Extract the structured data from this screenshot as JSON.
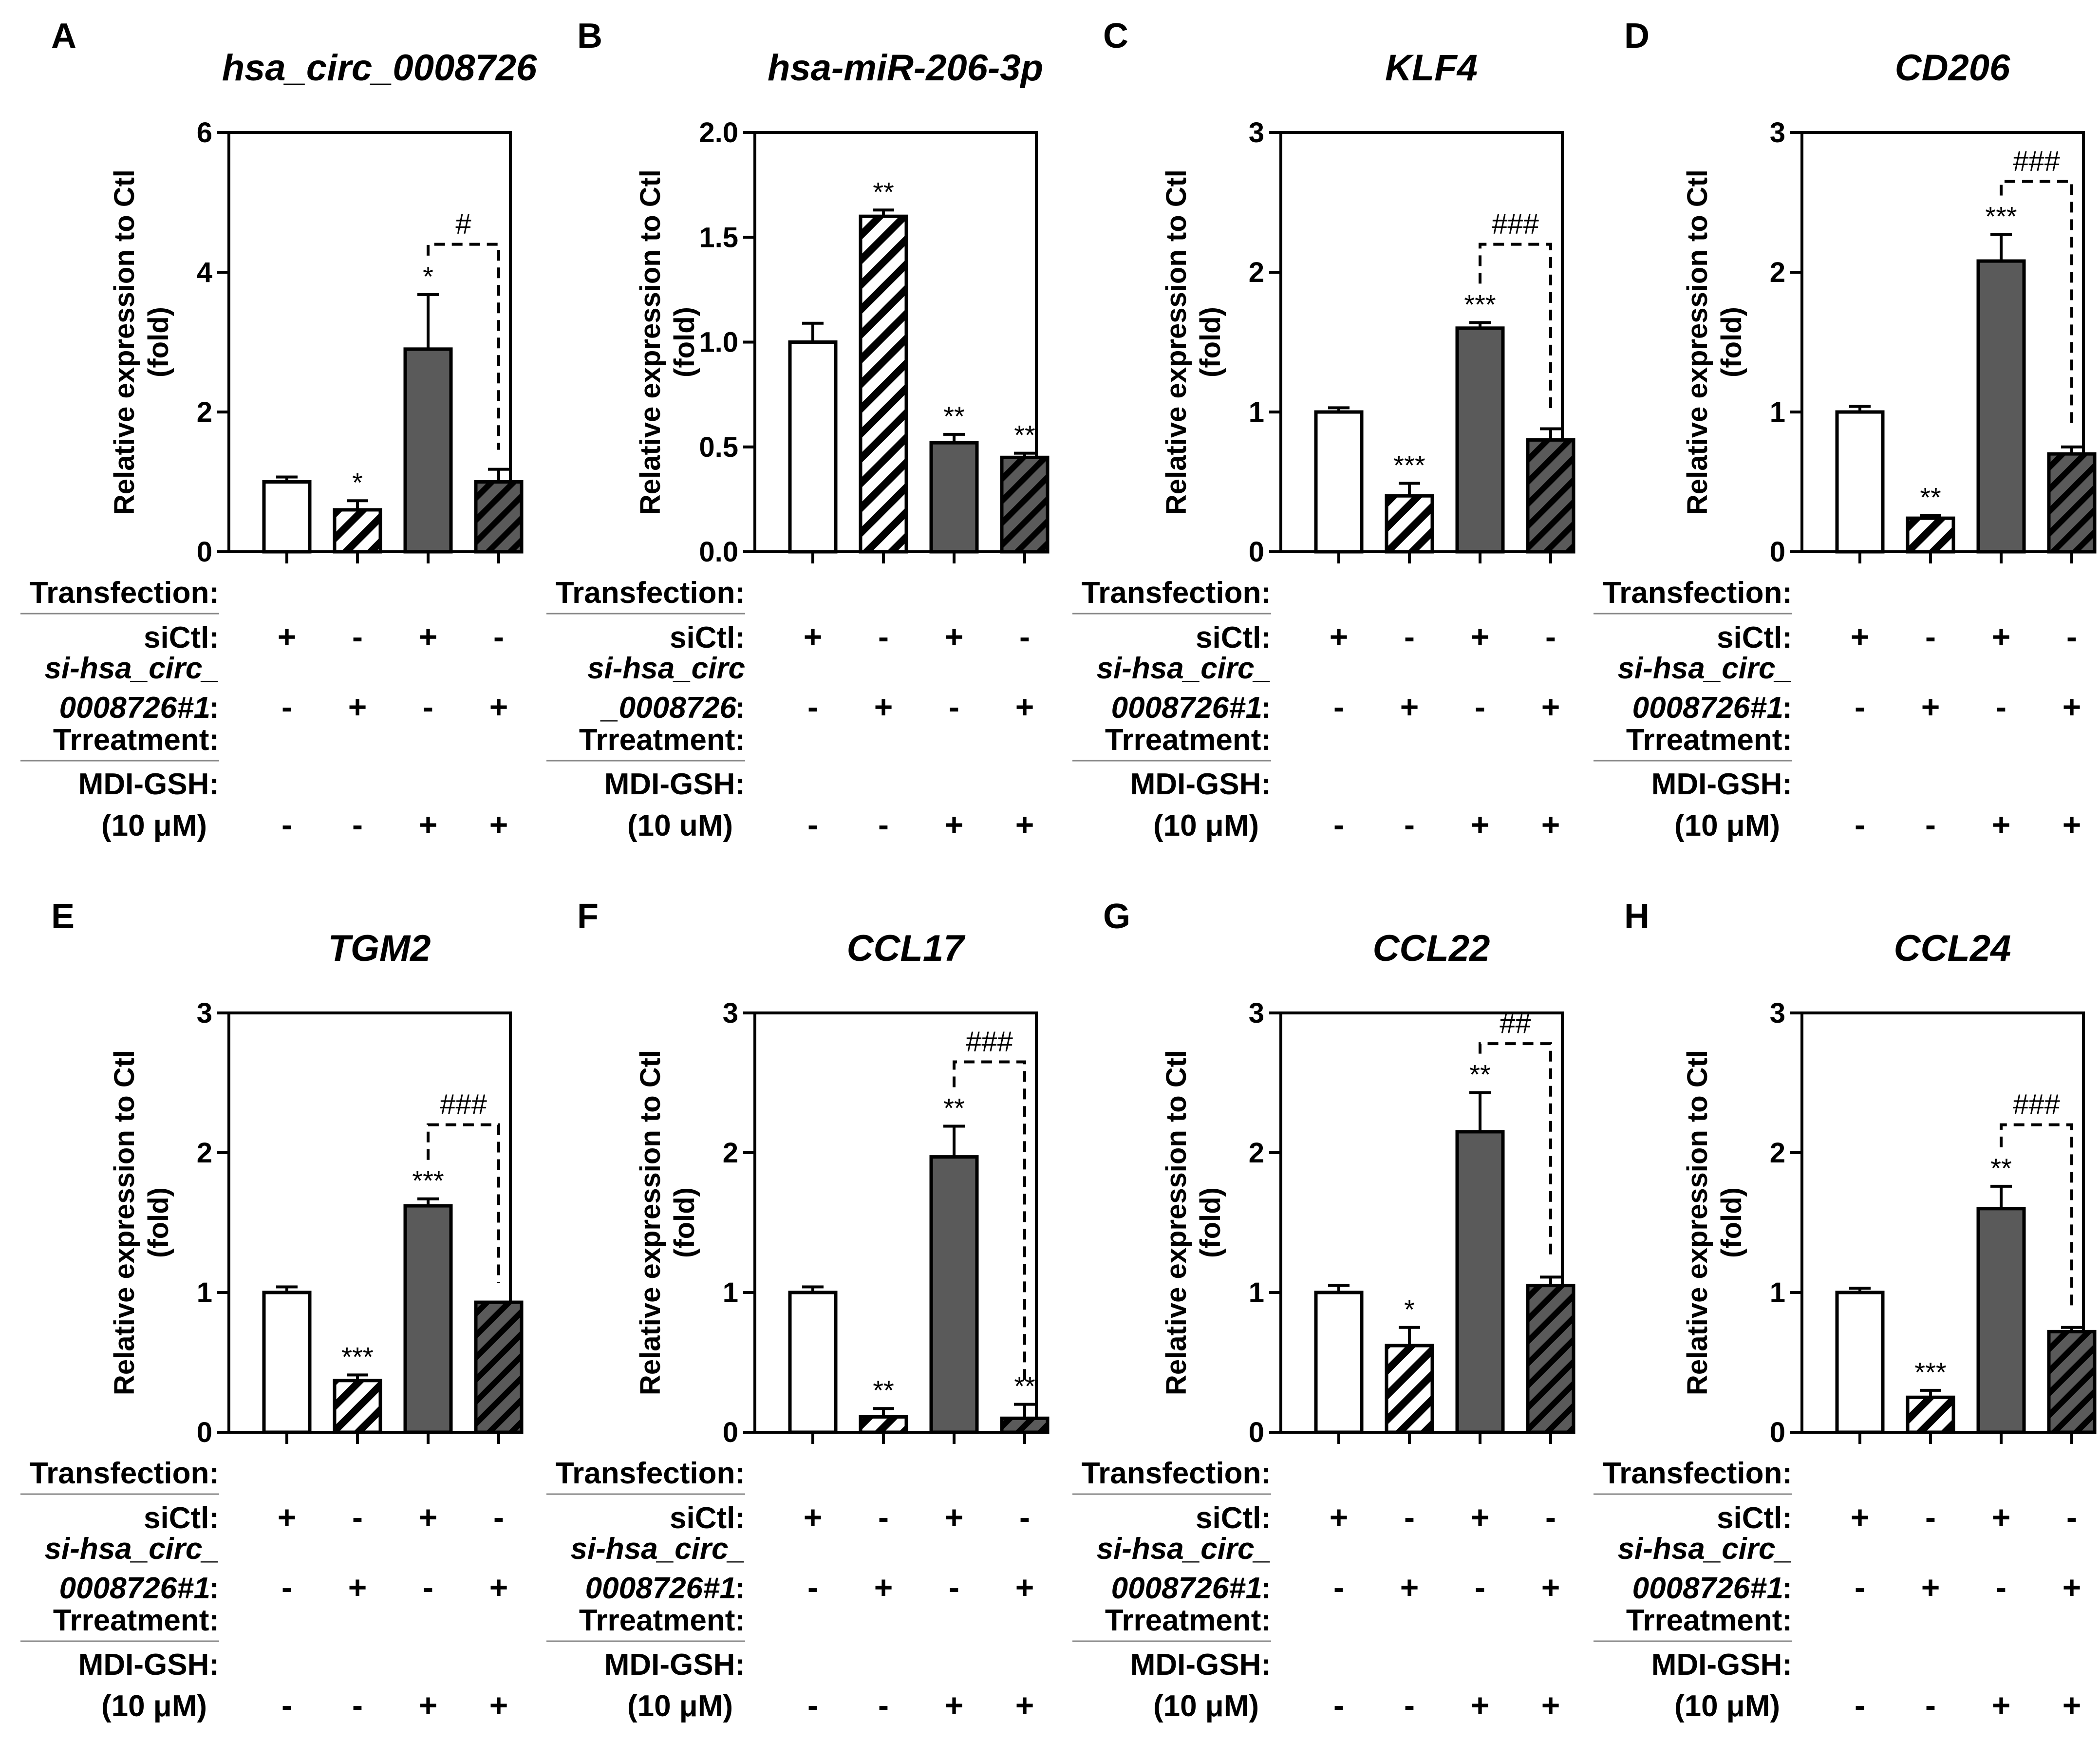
{
  "chart_data": [
    {
      "type": "bar",
      "panel_letter": "A",
      "title": "hsa_circ_0008726",
      "ylabel_line1": "Relative expression to Ctl",
      "ylabel_line2": "(fold)",
      "ylim": [
        0,
        6
      ],
      "yticks": [
        0,
        2,
        4,
        6
      ],
      "ytick_labels": [
        "0",
        "2",
        "4",
        "6"
      ],
      "values": [
        1.0,
        0.6,
        2.9,
        1.0
      ],
      "errors": [
        0.07,
        0.13,
        0.78,
        0.18
      ],
      "fills": [
        "open",
        "hatch-light",
        "solid",
        "hatch-dark"
      ],
      "bar_labels": [
        "",
        "*",
        "*",
        ""
      ],
      "comparison": {
        "from": 2,
        "to": 3,
        "label": "#",
        "y": 4.4
      },
      "table": {
        "transfection": "Transfection:",
        "si_control": "siCtl:",
        "sirna_line1": "si-hsa_circ_",
        "sirna_line2": "0008726#1",
        "sirna_colon": ":",
        "treatment": "Trreatment:",
        "drug": "MDI-GSH:",
        "dose": "(10 μM)",
        "rows": [
          [
            "+",
            "-",
            "+",
            "-"
          ],
          [
            "-",
            "+",
            "-",
            "+"
          ],
          [
            "-",
            "-",
            "+",
            "+"
          ]
        ]
      }
    },
    {
      "type": "bar",
      "panel_letter": "B",
      "title": "hsa-miR-206-3p",
      "ylabel_line1": "Relative expression to Ctl",
      "ylabel_line2": "(fold)",
      "ylim": [
        0,
        2
      ],
      "yticks": [
        0,
        0.5,
        1,
        1.5,
        2
      ],
      "ytick_labels": [
        "0.0",
        "0.5",
        "1.0",
        "1.5",
        "2.0"
      ],
      "values": [
        1.0,
        1.6,
        0.52,
        0.45
      ],
      "errors": [
        0.09,
        0.03,
        0.04,
        0.02
      ],
      "fills": [
        "open",
        "hatch-light",
        "solid",
        "hatch-dark"
      ],
      "bar_labels": [
        "",
        "**",
        "**",
        "**"
      ],
      "comparison": null,
      "table": {
        "transfection": "Transfection:",
        "si_control": "siCtl:",
        "sirna_line1": "si-hsa_circ",
        "sirna_line2": "_0008726",
        "sirna_colon": ":",
        "treatment": "Trreatment:",
        "drug": "MDI-GSH:",
        "dose": "(10 uM)",
        "rows": [
          [
            "+",
            "-",
            "+",
            "-"
          ],
          [
            "-",
            "+",
            "-",
            "+"
          ],
          [
            "-",
            "-",
            "+",
            "+"
          ]
        ]
      }
    },
    {
      "type": "bar",
      "panel_letter": "C",
      "title": "KLF4",
      "ylabel_line1": "Relative expression to Ctl",
      "ylabel_line2": "(fold)",
      "ylim": [
        0,
        3
      ],
      "yticks": [
        0,
        1,
        2,
        3
      ],
      "ytick_labels": [
        "0",
        "1",
        "2",
        "3"
      ],
      "values": [
        1.0,
        0.4,
        1.6,
        0.8
      ],
      "errors": [
        0.03,
        0.09,
        0.04,
        0.08
      ],
      "fills": [
        "open",
        "hatch-light",
        "solid",
        "hatch-dark"
      ],
      "bar_labels": [
        "",
        "***",
        "***",
        ""
      ],
      "comparison": {
        "from": 2,
        "to": 3,
        "label": "###",
        "y": 2.2
      },
      "table": {
        "transfection": "Transfection:",
        "si_control": "siCtl:",
        "sirna_line1": "si-hsa_circ_",
        "sirna_line2": "0008726#1",
        "sirna_colon": ":",
        "treatment": "Trreatment:",
        "drug": "MDI-GSH:",
        "dose": "(10 μM)",
        "rows": [
          [
            "+",
            "-",
            "+",
            "-"
          ],
          [
            "-",
            "+",
            "-",
            "+"
          ],
          [
            "-",
            "-",
            "+",
            "+"
          ]
        ]
      }
    },
    {
      "type": "bar",
      "panel_letter": "D",
      "title": "CD206",
      "ylabel_line1": "Relative expression to Ctl",
      "ylabel_line2": "(fold)",
      "ylim": [
        0,
        3
      ],
      "yticks": [
        0,
        1,
        2,
        3
      ],
      "ytick_labels": [
        "0",
        "1",
        "2",
        "3"
      ],
      "values": [
        1.0,
        0.24,
        2.08,
        0.7
      ],
      "errors": [
        0.04,
        0.02,
        0.19,
        0.05
      ],
      "fills": [
        "open",
        "hatch-light",
        "solid",
        "hatch-dark"
      ],
      "bar_labels": [
        "",
        "**",
        "***",
        ""
      ],
      "comparison": {
        "from": 2,
        "to": 3,
        "label": "###",
        "y": 2.65
      },
      "table": {
        "transfection": "Transfection:",
        "si_control": "siCtl:",
        "sirna_line1": "si-hsa_circ_",
        "sirna_line2": "0008726#1",
        "sirna_colon": ":",
        "treatment": "Trreatment:",
        "drug": "MDI-GSH:",
        "dose": "(10 μM)",
        "rows": [
          [
            "+",
            "-",
            "+",
            "-"
          ],
          [
            "-",
            "+",
            "-",
            "+"
          ],
          [
            "-",
            "-",
            "+",
            "+"
          ]
        ]
      }
    },
    {
      "type": "bar",
      "panel_letter": "E",
      "title": "TGM2",
      "ylabel_line1": "Relative expression to Ctl",
      "ylabel_line2": "(fold)",
      "ylim": [
        0,
        3
      ],
      "yticks": [
        0,
        1,
        2,
        3
      ],
      "ytick_labels": [
        "0",
        "1",
        "2",
        "3"
      ],
      "values": [
        1.0,
        0.37,
        1.62,
        0.93
      ],
      "errors": [
        0.04,
        0.04,
        0.05,
        0.0
      ],
      "fills": [
        "open",
        "hatch-light",
        "solid",
        "hatch-dark"
      ],
      "bar_labels": [
        "",
        "***",
        "***",
        ""
      ],
      "comparison": {
        "from": 2,
        "to": 3,
        "label": "###",
        "y": 2.2
      },
      "table": {
        "transfection": "Transfection:",
        "si_control": "siCtl:",
        "sirna_line1": "si-hsa_circ_",
        "sirna_line2": "0008726#1",
        "sirna_colon": ":",
        "treatment": "Trreatment:",
        "drug": "MDI-GSH:",
        "dose": "(10 μM)",
        "rows": [
          [
            "+",
            "-",
            "+",
            "-"
          ],
          [
            "-",
            "+",
            "-",
            "+"
          ],
          [
            "-",
            "-",
            "+",
            "+"
          ]
        ]
      }
    },
    {
      "type": "bar",
      "panel_letter": "F",
      "title": "CCL17",
      "ylabel_line1": "Relative expression to Ctl",
      "ylabel_line2": "(fold)",
      "ylim": [
        0,
        3
      ],
      "yticks": [
        0,
        1,
        2,
        3
      ],
      "ytick_labels": [
        "0",
        "1",
        "2",
        "3"
      ],
      "values": [
        1.0,
        0.11,
        1.97,
        0.1
      ],
      "errors": [
        0.04,
        0.06,
        0.22,
        0.1
      ],
      "fills": [
        "open",
        "hatch-light",
        "solid",
        "hatch-dark"
      ],
      "bar_labels": [
        "",
        "**",
        "**",
        "**"
      ],
      "comparison": {
        "from": 2,
        "to": 3,
        "label": "###",
        "y": 2.65
      },
      "table": {
        "transfection": "Transfection:",
        "si_control": "siCtl:",
        "sirna_line1": "si-hsa_circ_",
        "sirna_line2": "0008726#1",
        "sirna_colon": ":",
        "treatment": "Trreatment:",
        "drug": "MDI-GSH:",
        "dose": "(10 μM)",
        "rows": [
          [
            "+",
            "-",
            "+",
            "-"
          ],
          [
            "-",
            "+",
            "-",
            "+"
          ],
          [
            "-",
            "-",
            "+",
            "+"
          ]
        ]
      }
    },
    {
      "type": "bar",
      "panel_letter": "G",
      "title": "CCL22",
      "ylabel_line1": "Relative expression to Ctl",
      "ylabel_line2": "(fold)",
      "ylim": [
        0,
        3
      ],
      "yticks": [
        0,
        1,
        2,
        3
      ],
      "ytick_labels": [
        "0",
        "1",
        "2",
        "3"
      ],
      "values": [
        1.0,
        0.62,
        2.15,
        1.05
      ],
      "errors": [
        0.05,
        0.13,
        0.28,
        0.06
      ],
      "fills": [
        "open",
        "hatch-light",
        "solid",
        "hatch-dark"
      ],
      "bar_labels": [
        "",
        "*",
        "**",
        ""
      ],
      "comparison": {
        "from": 2,
        "to": 3,
        "label": "##",
        "y": 2.78
      },
      "table": {
        "transfection": "Transfection:",
        "si_control": "siCtl:",
        "sirna_line1": "si-hsa_circ_",
        "sirna_line2": "0008726#1",
        "sirna_colon": ":",
        "treatment": "Trreatment:",
        "drug": "MDI-GSH:",
        "dose": "(10 μM)",
        "rows": [
          [
            "+",
            "-",
            "+",
            "-"
          ],
          [
            "-",
            "+",
            "-",
            "+"
          ],
          [
            "-",
            "-",
            "+",
            "+"
          ]
        ]
      }
    },
    {
      "type": "bar",
      "panel_letter": "H",
      "title": "CCL24",
      "ylabel_line1": "Relative expression to Ctl",
      "ylabel_line2": "(fold)",
      "ylim": [
        0,
        3
      ],
      "yticks": [
        0,
        1,
        2,
        3
      ],
      "ytick_labels": [
        "0",
        "1",
        "2",
        "3"
      ],
      "values": [
        1.0,
        0.25,
        1.6,
        0.72
      ],
      "errors": [
        0.03,
        0.05,
        0.16,
        0.03
      ],
      "fills": [
        "open",
        "hatch-light",
        "solid",
        "hatch-dark"
      ],
      "bar_labels": [
        "",
        "***",
        "**",
        ""
      ],
      "comparison": {
        "from": 2,
        "to": 3,
        "label": "###",
        "y": 2.2
      },
      "table": {
        "transfection": "Transfection:",
        "si_control": "siCtl:",
        "sirna_line1": "si-hsa_circ_",
        "sirna_line2": "0008726#1",
        "sirna_colon": ":",
        "treatment": "Trreatment:",
        "drug": "MDI-GSH:",
        "dose": "(10 μM)",
        "rows": [
          [
            "+",
            "-",
            "+",
            "-"
          ],
          [
            "-",
            "+",
            "-",
            "+"
          ],
          [
            "-",
            "-",
            "+",
            "+"
          ]
        ]
      }
    }
  ]
}
